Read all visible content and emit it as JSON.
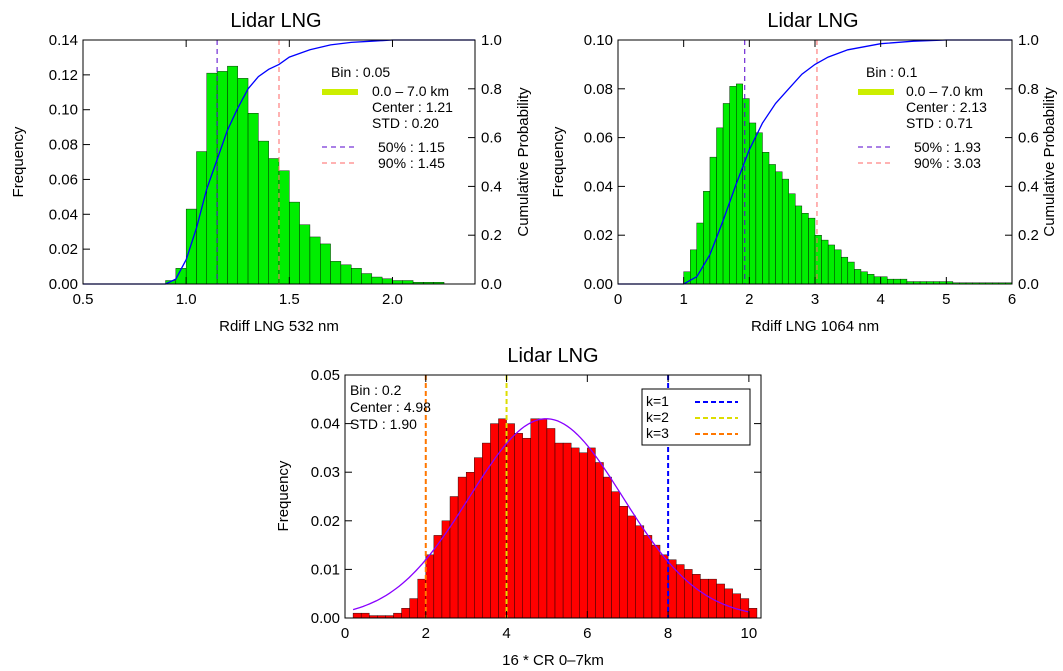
{
  "figure": "histograms",
  "chart_data": [
    {
      "id": "panel-532",
      "type": "bar",
      "title": "Lidar LNG",
      "xlabel": "Rdiff LNG 532 nm",
      "ylabel": "Frequency",
      "y2label": "Cumulative Probability",
      "xlim": [
        0.5,
        2.4
      ],
      "ylim": [
        0,
        0.14
      ],
      "y2lim": [
        0,
        1.0
      ],
      "xticks": [
        "0.5",
        "1.0",
        "1.5",
        "2.0"
      ],
      "xtick_values": [
        0.5,
        1.0,
        1.5,
        2.0
      ],
      "yticks": [
        "0.00",
        "0.02",
        "0.04",
        "0.06",
        "0.08",
        "0.10",
        "0.12",
        "0.14"
      ],
      "ytick_values": [
        0,
        0.02,
        0.04,
        0.06,
        0.08,
        0.1,
        0.12,
        0.14
      ],
      "y2ticks": [
        "0.0",
        "0.2",
        "0.4",
        "0.6",
        "0.8",
        "1.0"
      ],
      "y2tick_values": [
        0,
        0.2,
        0.4,
        0.6,
        0.8,
        1.0
      ],
      "bin_width": 0.05,
      "bin_starts": [
        0.9,
        0.95,
        1.0,
        1.05,
        1.1,
        1.15,
        1.2,
        1.25,
        1.3,
        1.35,
        1.4,
        1.45,
        1.5,
        1.55,
        1.6,
        1.65,
        1.7,
        1.75,
        1.8,
        1.85,
        1.9,
        1.95,
        2.0,
        2.05,
        2.1,
        2.15,
        2.2
      ],
      "values": [
        0.002,
        0.009,
        0.043,
        0.076,
        0.121,
        0.122,
        0.125,
        0.118,
        0.098,
        0.082,
        0.072,
        0.065,
        0.047,
        0.034,
        0.027,
        0.023,
        0.013,
        0.011,
        0.009,
        0.006,
        0.004,
        0.003,
        0.002,
        0.002,
        0.001,
        0.001,
        0.001
      ],
      "bar_color": "#00ee00",
      "cumulative": {
        "color": "#0000ff",
        "x": [
          0.5,
          0.9,
          0.95,
          1.0,
          1.05,
          1.1,
          1.15,
          1.2,
          1.25,
          1.3,
          1.35,
          1.4,
          1.45,
          1.5,
          1.6,
          1.7,
          1.8,
          1.9,
          2.0,
          2.2,
          2.4
        ],
        "y": [
          0.0,
          0.0,
          0.02,
          0.1,
          0.23,
          0.39,
          0.51,
          0.63,
          0.72,
          0.8,
          0.85,
          0.88,
          0.9,
          0.93,
          0.96,
          0.98,
          0.99,
          0.995,
          1.0,
          1.0,
          1.0
        ]
      },
      "vlines": [
        {
          "x": 1.15,
          "color": "#5500cc"
        },
        {
          "x": 1.45,
          "color": "#ff6666"
        }
      ],
      "legend": {
        "bin": "Bin : 0.05",
        "range": "0.0 – 7.0 km",
        "range_color": "#ccee00",
        "center": "Center : 1.21",
        "std": "STD : 0.20",
        "p50": "50% : 1.15",
        "p50_color": "#5500cc",
        "p90": "90% : 1.45",
        "p90_color": "#ff6666"
      }
    },
    {
      "id": "panel-1064",
      "type": "bar",
      "title": "Lidar LNG",
      "xlabel": "Rdiff LNG 1064 nm",
      "ylabel": "Frequency",
      "y2label": "Cumulative Probability",
      "xlim": [
        0,
        6
      ],
      "ylim": [
        0,
        0.1
      ],
      "y2lim": [
        0,
        1.0
      ],
      "xticks": [
        "0",
        "1",
        "2",
        "3",
        "4",
        "5",
        "6"
      ],
      "xtick_values": [
        0,
        1,
        2,
        3,
        4,
        5,
        6
      ],
      "yticks": [
        "0.00",
        "0.02",
        "0.04",
        "0.06",
        "0.08",
        "0.10"
      ],
      "ytick_values": [
        0,
        0.02,
        0.04,
        0.06,
        0.08,
        0.1
      ],
      "y2ticks": [
        "0.0",
        "0.2",
        "0.4",
        "0.6",
        "0.8",
        "1.0"
      ],
      "y2tick_values": [
        0,
        0.2,
        0.4,
        0.6,
        0.8,
        1.0
      ],
      "bin_width": 0.1,
      "bin_starts": [
        1.0,
        1.1,
        1.2,
        1.3,
        1.4,
        1.5,
        1.6,
        1.7,
        1.8,
        1.9,
        2.0,
        2.1,
        2.2,
        2.3,
        2.4,
        2.5,
        2.6,
        2.7,
        2.8,
        2.9,
        3.0,
        3.1,
        3.2,
        3.3,
        3.4,
        3.5,
        3.6,
        3.7,
        3.8,
        3.9,
        4.0,
        4.1,
        4.2,
        4.3,
        4.4,
        4.5,
        4.6,
        4.7,
        4.8,
        4.9,
        5.0,
        5.1,
        5.2,
        5.3,
        5.4,
        5.5,
        5.6,
        5.7,
        5.8,
        5.9
      ],
      "values": [
        0.005,
        0.014,
        0.025,
        0.038,
        0.052,
        0.064,
        0.074,
        0.081,
        0.082,
        0.076,
        0.066,
        0.062,
        0.054,
        0.049,
        0.046,
        0.043,
        0.037,
        0.032,
        0.029,
        0.027,
        0.02,
        0.018,
        0.016,
        0.014,
        0.011,
        0.009,
        0.006,
        0.005,
        0.004,
        0.003,
        0.003,
        0.002,
        0.002,
        0.002,
        0.001,
        0.001,
        0.001,
        0.001,
        0.001,
        0.001,
        0.001,
        0.0005,
        0.0005,
        0.0005,
        0.0005,
        0.0005,
        0.0005,
        0.0005,
        0.0005,
        0.0005
      ],
      "bar_color": "#00ee00",
      "cumulative": {
        "color": "#0000ff",
        "x": [
          0,
          1.0,
          1.2,
          1.4,
          1.6,
          1.8,
          2.0,
          2.2,
          2.4,
          2.6,
          2.8,
          3.0,
          3.2,
          3.5,
          4.0,
          4.5,
          5.0,
          5.5,
          6.0
        ],
        "y": [
          0.0,
          0.0,
          0.03,
          0.12,
          0.26,
          0.41,
          0.55,
          0.66,
          0.74,
          0.8,
          0.86,
          0.9,
          0.93,
          0.96,
          0.985,
          0.995,
          1.0,
          1.0,
          1.0
        ]
      },
      "vlines": [
        {
          "x": 1.93,
          "color": "#5500cc"
        },
        {
          "x": 3.03,
          "color": "#ff6666"
        }
      ],
      "legend": {
        "bin": "Bin : 0.1",
        "range": "0.0 – 7.0 km",
        "range_color": "#ccee00",
        "center": "Center : 2.13",
        "std": "STD : 0.71",
        "p50": "50% : 1.93",
        "p50_color": "#5500cc",
        "p90": "90% : 3.03",
        "p90_color": "#ff6666"
      }
    },
    {
      "id": "panel-cr",
      "type": "bar",
      "title": "Lidar LNG",
      "xlabel": "16 * CR 0–7km",
      "ylabel": "Frequency",
      "xlim": [
        0,
        10.3
      ],
      "ylim": [
        0,
        0.05
      ],
      "xticks": [
        "0",
        "2",
        "4",
        "6",
        "8",
        "10"
      ],
      "xtick_values": [
        0,
        2,
        4,
        6,
        8,
        10
      ],
      "yticks": [
        "0.00",
        "0.01",
        "0.02",
        "0.03",
        "0.04",
        "0.05"
      ],
      "ytick_values": [
        0,
        0.01,
        0.02,
        0.03,
        0.04,
        0.05
      ],
      "bin_width": 0.2,
      "bin_starts": [
        0.2,
        0.4,
        0.6,
        0.8,
        1.0,
        1.2,
        1.4,
        1.6,
        1.8,
        2.0,
        2.2,
        2.4,
        2.6,
        2.8,
        3.0,
        3.2,
        3.4,
        3.6,
        3.8,
        4.0,
        4.2,
        4.4,
        4.6,
        4.8,
        5.0,
        5.2,
        5.4,
        5.6,
        5.8,
        6.0,
        6.2,
        6.4,
        6.6,
        6.8,
        7.0,
        7.2,
        7.4,
        7.6,
        7.8,
        8.0,
        8.2,
        8.4,
        8.6,
        8.8,
        9.0,
        9.2,
        9.4,
        9.6,
        9.8,
        10.0
      ],
      "values": [
        0.001,
        0.001,
        0.0005,
        0.0005,
        0.0005,
        0.001,
        0.002,
        0.004,
        0.008,
        0.013,
        0.017,
        0.02,
        0.025,
        0.029,
        0.03,
        0.033,
        0.036,
        0.04,
        0.041,
        0.04,
        0.038,
        0.037,
        0.041,
        0.041,
        0.039,
        0.036,
        0.036,
        0.035,
        0.034,
        0.035,
        0.032,
        0.029,
        0.026,
        0.023,
        0.021,
        0.019,
        0.017,
        0.015,
        0.013,
        0.012,
        0.011,
        0.01,
        0.009,
        0.008,
        0.008,
        0.007,
        0.006,
        0.005,
        0.004,
        0.002
      ],
      "bar_color": "#ff0000",
      "fit": {
        "color": "#8800ff",
        "center": 4.98,
        "std": 1.9,
        "peak": 0.041,
        "xmin": 0.2,
        "xmax": 10.0
      },
      "vlines": [
        {
          "x": 2.0,
          "color": "#ff7700"
        },
        {
          "x": 4.0,
          "color": "#dddd00"
        },
        {
          "x": 8.0,
          "color": "#0000ff"
        }
      ],
      "stats": {
        "bin": "Bin : 0.2",
        "center": "Center : 4.98",
        "std": "STD : 1.90"
      },
      "legend": [
        {
          "label": "k=1",
          "color": "#0000ff"
        },
        {
          "label": "k=2",
          "color": "#dddd00"
        },
        {
          "label": "k=3",
          "color": "#ff7700"
        }
      ]
    }
  ]
}
